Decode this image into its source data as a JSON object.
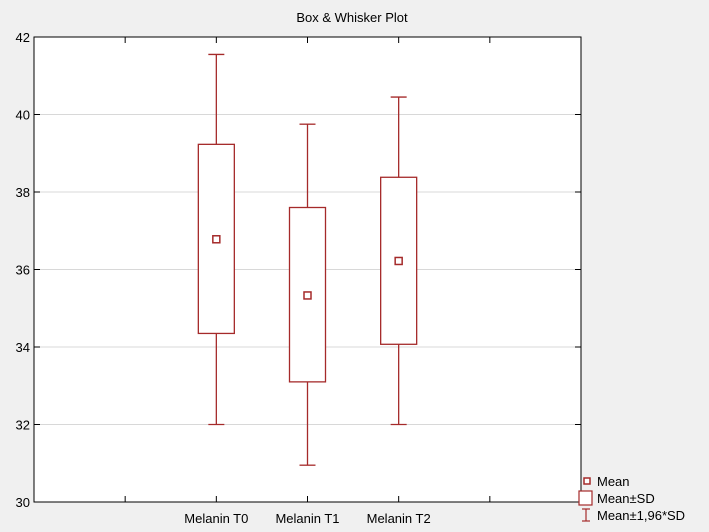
{
  "chart_data": {
    "type": "box",
    "title": "Box & Whisker Plot",
    "xlabel": "",
    "ylabel": "",
    "ylim": [
      30,
      42
    ],
    "yticks": [
      30,
      32,
      34,
      36,
      38,
      40,
      42
    ],
    "grid": true,
    "categories": [
      "Melanin T0",
      "Melanin T1",
      "Melanin T2"
    ],
    "boxes": [
      {
        "category": "Melanin T0",
        "mean": 36.78,
        "mean_minus_sd": 34.35,
        "mean_plus_sd": 39.23,
        "lower_whisker": 32.0,
        "upper_whisker": 41.55
      },
      {
        "category": "Melanin T1",
        "mean": 35.33,
        "mean_minus_sd": 33.1,
        "mean_plus_sd": 37.6,
        "lower_whisker": 30.95,
        "upper_whisker": 39.75
      },
      {
        "category": "Melanin T2",
        "mean": 36.22,
        "mean_minus_sd": 34.07,
        "mean_plus_sd": 38.38,
        "lower_whisker": 32.0,
        "upper_whisker": 40.45
      }
    ],
    "legend_position": "bottom-right",
    "legend": [
      {
        "symbol": "mean-square",
        "label": "Mean"
      },
      {
        "symbol": "box",
        "label": "Mean±SD"
      },
      {
        "symbol": "whisker",
        "label": "Mean±1,96*SD"
      }
    ],
    "colors": {
      "series": "#a52a2a",
      "grid": "#d8d8d8",
      "axis": "#000000",
      "background": "#f0f0f0",
      "plot_background": "#ffffff"
    }
  }
}
